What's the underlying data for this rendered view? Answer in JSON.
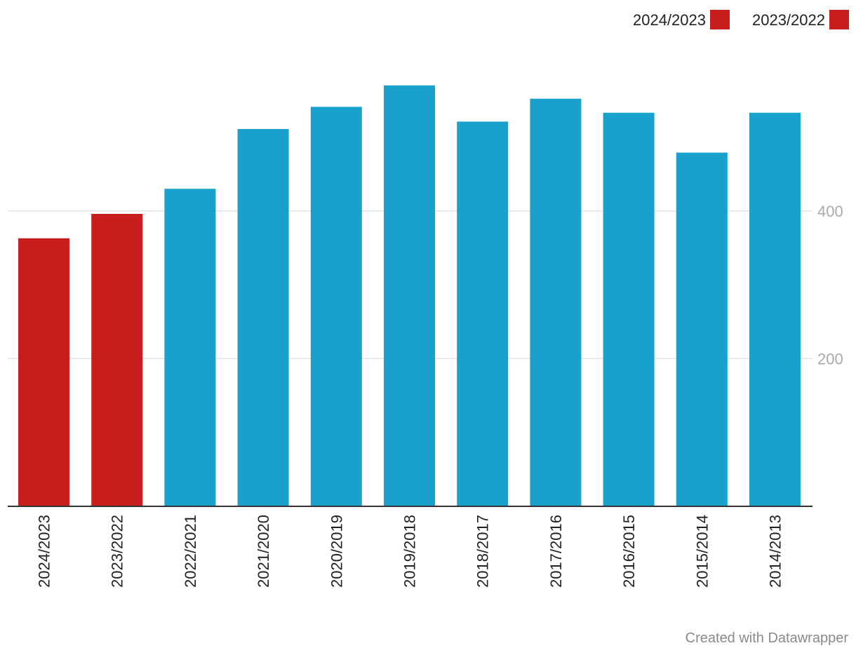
{
  "chart_data": {
    "type": "bar",
    "categories": [
      "2024/2023",
      "2023/2022",
      "2022/2021",
      "2021/2020",
      "2020/2019",
      "2019/2018",
      "2018/2017",
      "2017/2016",
      "2016/2015",
      "2015/2014",
      "2014/2013"
    ],
    "values": [
      363,
      396,
      430,
      511,
      541,
      570,
      521,
      552,
      533,
      479,
      533
    ],
    "bar_colors": [
      "#c71e1d",
      "#c71e1d",
      "#18a1cd",
      "#18a1cd",
      "#18a1cd",
      "#18a1cd",
      "#18a1cd",
      "#18a1cd",
      "#18a1cd",
      "#18a1cd",
      "#18a1cd"
    ],
    "ylim": [
      0,
      600
    ],
    "y_ticks": [
      200,
      400
    ],
    "y_axis_side": "right",
    "grid": true,
    "legend": {
      "placement": "top-right",
      "items": [
        {
          "label": "2024/2023",
          "color": "#c71e1d"
        },
        {
          "label": "2023/2022",
          "color": "#c71e1d"
        }
      ]
    },
    "title": "",
    "xlabel": "",
    "ylabel": ""
  },
  "footer": {
    "credit": "Created with Datawrapper"
  }
}
